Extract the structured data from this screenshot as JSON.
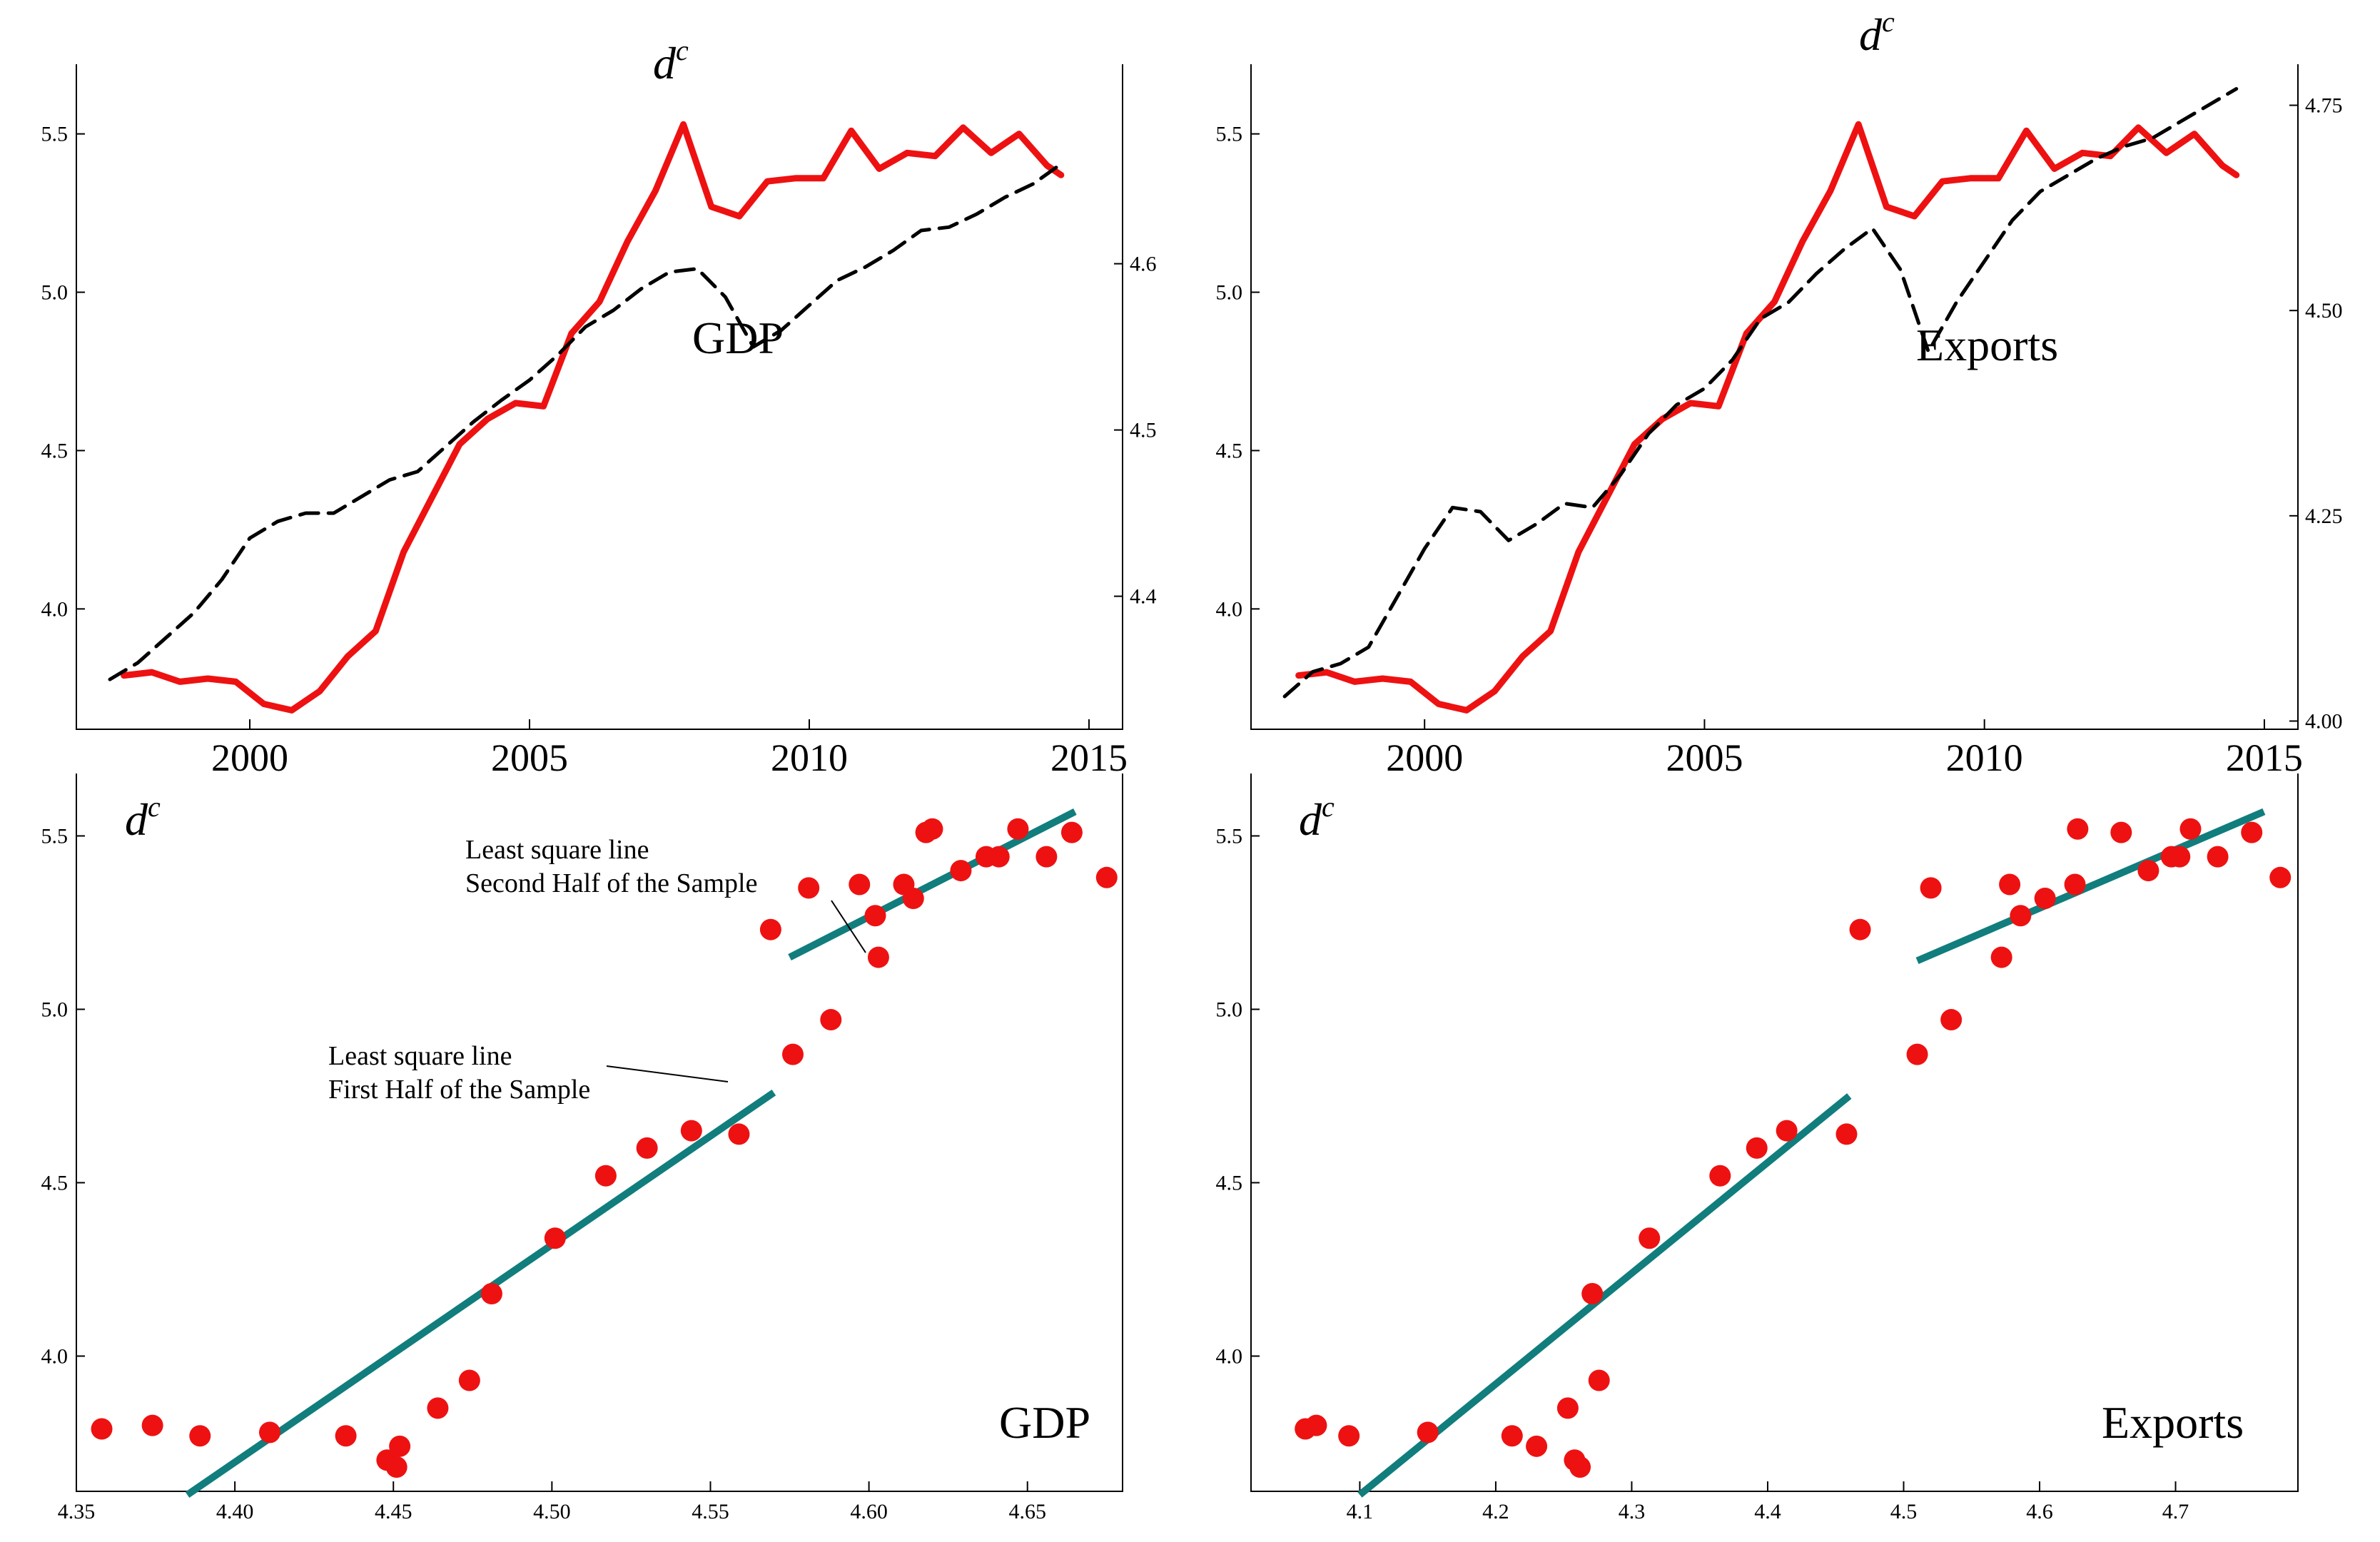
{
  "chart_data": [
    {
      "type": "line",
      "title": "d",
      "title_superscript": "c",
      "annotation": "GDP",
      "x_ticks": [
        "2000",
        "2005",
        "2010",
        "2015"
      ],
      "xlim": [
        1996.9,
        2015.6
      ],
      "ylim": [
        3.62,
        5.72
      ],
      "y_ticks": [
        "4.0",
        "4.5",
        "5.0",
        "5.5"
      ],
      "y2lim": [
        4.32,
        4.72
      ],
      "y2_ticks": [
        "4.4",
        "4.5",
        "4.6"
      ],
      "colors": {
        "dc": "#ee1111",
        "other": "#000000"
      },
      "series": [
        {
          "name": "dc",
          "axis": "left",
          "style": "solid",
          "x": [
            1997.75,
            1998.25,
            1998.75,
            1999.25,
            1999.75,
            2000.25,
            2000.75,
            2001.25,
            2001.75,
            2002.25,
            2002.75,
            2003.25,
            2003.75,
            2004.25,
            2004.75,
            2005.25,
            2005.75,
            2006.25,
            2006.75,
            2007.25,
            2007.75,
            2008.25,
            2008.75,
            2009.25,
            2009.75,
            2010.25,
            2010.75,
            2011.25,
            2011.75,
            2012.25,
            2012.75,
            2013.25,
            2013.75,
            2014.25,
            2014.5
          ],
          "values": [
            3.79,
            3.8,
            3.77,
            3.78,
            3.77,
            3.7,
            3.68,
            3.74,
            3.85,
            3.93,
            4.18,
            4.35,
            4.52,
            4.6,
            4.65,
            4.64,
            4.87,
            4.97,
            5.16,
            5.32,
            5.53,
            5.27,
            5.24,
            5.35,
            5.36,
            5.36,
            5.51,
            5.39,
            5.44,
            5.43,
            5.52,
            5.44,
            5.5,
            5.4,
            5.37
          ]
        },
        {
          "name": "GDP",
          "axis": "right",
          "style": "dashed",
          "x": [
            1997.5,
            1998.0,
            1998.5,
            1999.0,
            1999.5,
            2000.0,
            2000.5,
            2001.0,
            2001.5,
            2002.0,
            2002.5,
            2003.0,
            2003.5,
            2004.0,
            2004.5,
            2005.0,
            2005.5,
            2006.0,
            2006.5,
            2007.0,
            2007.5,
            2008.0,
            2008.5,
            2009.0,
            2009.5,
            2010.0,
            2010.5,
            2011.0,
            2011.5,
            2012.0,
            2012.5,
            2013.0,
            2013.5,
            2014.0,
            2014.5
          ],
          "values": [
            4.35,
            4.36,
            4.375,
            4.39,
            4.41,
            4.435,
            4.445,
            4.45,
            4.45,
            4.46,
            4.47,
            4.475,
            4.49,
            4.505,
            4.518,
            4.53,
            4.545,
            4.562,
            4.572,
            4.585,
            4.595,
            4.597,
            4.58,
            4.55,
            4.56,
            4.575,
            4.59,
            4.598,
            4.608,
            4.62,
            4.622,
            4.63,
            4.64,
            4.648,
            4.66
          ]
        }
      ]
    },
    {
      "type": "line",
      "title": "d",
      "title_superscript": "c",
      "annotation": "Exports",
      "x_ticks": [
        "2000",
        "2005",
        "2010",
        "2015"
      ],
      "xlim": [
        1996.9,
        2015.6
      ],
      "ylim": [
        3.62,
        5.72
      ],
      "y_ticks": [
        "4.0",
        "4.5",
        "5.0",
        "5.5"
      ],
      "y2lim": [
        3.99,
        4.8
      ],
      "y2_ticks": [
        "4.00",
        "4.25",
        "4.50",
        "4.75"
      ],
      "colors": {
        "dc": "#ee1111",
        "other": "#000000"
      },
      "series": [
        {
          "name": "dc",
          "axis": "left",
          "style": "solid",
          "x": [
            1997.75,
            1998.25,
            1998.75,
            1999.25,
            1999.75,
            2000.25,
            2000.75,
            2001.25,
            2001.75,
            2002.25,
            2002.75,
            2003.25,
            2003.75,
            2004.25,
            2004.75,
            2005.25,
            2005.75,
            2006.25,
            2006.75,
            2007.25,
            2007.75,
            2008.25,
            2008.75,
            2009.25,
            2009.75,
            2010.25,
            2010.75,
            2011.25,
            2011.75,
            2012.25,
            2012.75,
            2013.25,
            2013.75,
            2014.25,
            2014.5
          ],
          "values": [
            3.79,
            3.8,
            3.77,
            3.78,
            3.77,
            3.7,
            3.68,
            3.74,
            3.85,
            3.93,
            4.18,
            4.35,
            4.52,
            4.6,
            4.65,
            4.64,
            4.87,
            4.97,
            5.16,
            5.32,
            5.53,
            5.27,
            5.24,
            5.35,
            5.36,
            5.36,
            5.51,
            5.39,
            5.44,
            5.43,
            5.52,
            5.44,
            5.5,
            5.4,
            5.37
          ]
        },
        {
          "name": "Exports",
          "axis": "right",
          "style": "dashed",
          "x": [
            1997.5,
            1998.0,
            1998.5,
            1999.0,
            1999.5,
            2000.0,
            2000.5,
            2001.0,
            2001.5,
            2002.0,
            2002.5,
            2003.0,
            2003.5,
            2004.0,
            2004.5,
            2005.0,
            2005.5,
            2006.0,
            2006.5,
            2007.0,
            2007.5,
            2008.0,
            2008.5,
            2009.0,
            2009.5,
            2010.0,
            2010.5,
            2011.0,
            2011.5,
            2012.0,
            2012.5,
            2013.0,
            2013.5,
            2014.0,
            2014.5
          ],
          "values": [
            4.03,
            4.06,
            4.07,
            4.09,
            4.15,
            4.21,
            4.26,
            4.255,
            4.22,
            4.24,
            4.265,
            4.26,
            4.3,
            4.35,
            4.385,
            4.405,
            4.44,
            4.49,
            4.51,
            4.545,
            4.575,
            4.6,
            4.55,
            4.45,
            4.51,
            4.56,
            4.61,
            4.645,
            4.665,
            4.685,
            4.7,
            4.71,
            4.73,
            4.75,
            4.77
          ]
        }
      ]
    },
    {
      "type": "scatter",
      "title": "d",
      "title_superscript": "c",
      "annotation": "GDP",
      "xlim": [
        4.35,
        4.68
      ],
      "x_ticks": [
        "4.35",
        "4.40",
        "4.45",
        "4.50",
        "4.55",
        "4.60",
        "4.65"
      ],
      "ylim": [
        3.61,
        5.68
      ],
      "y_ticks": [
        "4.0",
        "4.5",
        "5.0",
        "5.5"
      ],
      "colors": {
        "points": "#ee1111",
        "fit": "#117d7d"
      },
      "x": [
        4.358,
        4.374,
        4.389,
        4.411,
        4.435,
        4.448,
        4.451,
        4.452,
        4.464,
        4.474,
        4.481,
        4.501,
        4.517,
        4.53,
        4.544,
        4.559,
        4.569,
        4.576,
        4.581,
        4.588,
        4.597,
        4.602,
        4.603,
        4.611,
        4.614,
        4.618,
        4.62,
        4.629,
        4.637,
        4.641,
        4.647,
        4.656,
        4.664,
        4.675
      ],
      "values": [
        3.79,
        3.8,
        3.77,
        3.78,
        3.77,
        3.7,
        3.68,
        3.74,
        3.85,
        3.93,
        4.18,
        4.34,
        4.52,
        4.6,
        4.65,
        4.64,
        5.23,
        4.87,
        5.35,
        4.97,
        5.36,
        5.27,
        5.15,
        5.36,
        5.32,
        5.51,
        5.52,
        5.4,
        5.44,
        5.44,
        5.52,
        5.44,
        5.51,
        5.38
      ],
      "fit_lines": [
        {
          "name": "first-half",
          "x": [
            4.385,
            4.57
          ],
          "values": [
            3.6,
            4.76
          ]
        },
        {
          "name": "second-half",
          "x": [
            4.575,
            4.665
          ],
          "values": [
            5.15,
            5.57
          ]
        }
      ],
      "notes": [
        {
          "name": "first-half",
          "lines": [
            "Least square line",
            "First Half of the Sample"
          ]
        },
        {
          "name": "second-half",
          "lines": [
            "Least square line",
            "Second Half of the Sample"
          ]
        }
      ]
    },
    {
      "type": "scatter",
      "title": "d",
      "title_superscript": "c",
      "annotation": "Exports",
      "xlim": [
        4.02,
        4.79
      ],
      "x_ticks": [
        "4.1",
        "4.2",
        "4.3",
        "4.4",
        "4.5",
        "4.6",
        "4.7"
      ],
      "ylim": [
        3.61,
        5.68
      ],
      "y_ticks": [
        "4.0",
        "4.5",
        "5.0",
        "5.5"
      ],
      "colors": {
        "points": "#ee1111",
        "fit": "#117d7d"
      },
      "x": [
        4.06,
        4.068,
        4.092,
        4.15,
        4.212,
        4.23,
        4.253,
        4.258,
        4.262,
        4.271,
        4.276,
        4.313,
        4.365,
        4.392,
        4.414,
        4.458,
        4.468,
        4.51,
        4.52,
        4.535,
        4.572,
        4.578,
        4.586,
        4.604,
        4.626,
        4.628,
        4.66,
        4.68,
        4.697,
        4.703,
        4.711,
        4.731,
        4.756,
        4.777
      ],
      "values": [
        3.79,
        3.8,
        3.77,
        3.78,
        3.77,
        3.74,
        3.85,
        3.7,
        3.68,
        4.18,
        3.93,
        4.34,
        4.52,
        4.6,
        4.65,
        4.64,
        5.23,
        4.87,
        5.35,
        4.97,
        5.15,
        5.36,
        5.27,
        5.32,
        5.36,
        5.52,
        5.51,
        5.4,
        5.44,
        5.44,
        5.52,
        5.44,
        5.51,
        5.38
      ],
      "fit_lines": [
        {
          "name": "first-half",
          "x": [
            4.1,
            4.46
          ],
          "values": [
            3.6,
            4.75
          ]
        },
        {
          "name": "second-half",
          "x": [
            4.51,
            4.765
          ],
          "values": [
            5.14,
            5.57
          ]
        }
      ],
      "notes": []
    }
  ]
}
